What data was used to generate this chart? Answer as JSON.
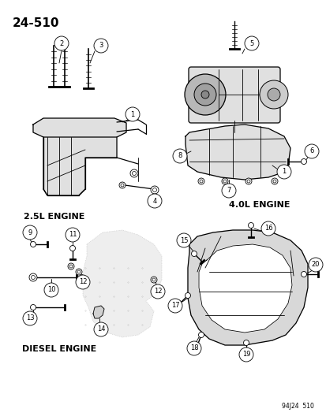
{
  "title": "24–510",
  "footer": "94J24  510",
  "bg_color": "#ffffff",
  "sections": [
    {
      "label": "2.5L ENGINE"
    },
    {
      "label": "4.0L ENGINE"
    },
    {
      "label": "DIESEL ENGINE"
    }
  ]
}
